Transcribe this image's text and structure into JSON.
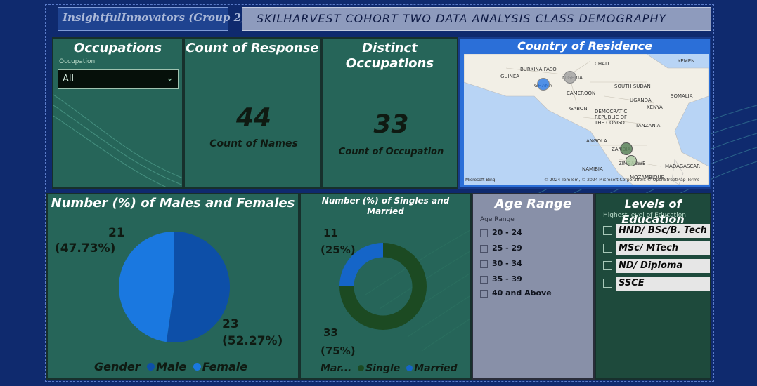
{
  "header": {
    "group_name": "InsightfulInnovators (Group 2)",
    "report_title": "SKILHARVEST COHORT TWO DATA ANALYSIS CLASS DEMOGRAPHY"
  },
  "occupations": {
    "title": "Occupations",
    "filter_label": "Occupation",
    "filter_value": "All"
  },
  "count_of_response": {
    "title": "Count of Response",
    "value": "44",
    "caption": "Count of Names"
  },
  "distinct_occupations": {
    "title_line1": "Distinct",
    "title_line2": "Occupations",
    "value": "33",
    "caption": "Count of Occupation"
  },
  "country_map": {
    "title": "Country of Residence",
    "labels": [
      "BURKINA FASO",
      "CHAD",
      "YEMEN",
      "GUINEA",
      "NIGERIA",
      "GHANA",
      "CAMEROON",
      "SOUTH SUDAN",
      "SOMALIA",
      "UGANDA",
      "KENYA",
      "GABON",
      "DEMOCRATIC",
      "REPUBLIC OF",
      "THE CONGO",
      "TANZANIA",
      "ANGOLA",
      "ZAMBIA",
      "ZIMBABWE",
      "NAMIBIA",
      "MADAGASCAR",
      "MOZAMBIQUE"
    ],
    "attribution_left": "Microsoft Bing",
    "attribution_right": "© 2024 TomTom, © 2024 Microsoft Corporation, © OpenStreetMap  Terms"
  },
  "gender": {
    "title": "Number (%) of Males and Females",
    "legend_title": "Gender",
    "legend": [
      {
        "name": "Male",
        "color": "#0d4fa8"
      },
      {
        "name": "Female",
        "color": "#1a78e0"
      }
    ],
    "female_label_count": "21",
    "female_label_pct": "(47.73%)",
    "male_label_count": "23",
    "male_label_pct": "(52.27%)"
  },
  "marital": {
    "title": "Number (%) of Singles and Married",
    "legend_title": "Mar...",
    "legend": [
      {
        "name": "Single",
        "color": "#1c4a22"
      },
      {
        "name": "Married",
        "color": "#1565c8"
      }
    ],
    "married_label_count": "11",
    "married_label_pct": "(25%)",
    "single_label_count": "33",
    "single_label_pct": "(75%)"
  },
  "age_range": {
    "title": "Age Range",
    "filter_label": "Age Range",
    "items": [
      "20 - 24",
      "25 - 29",
      "30 - 34",
      "35 - 39",
      "40 and Above"
    ]
  },
  "education": {
    "title": "Levels of Education",
    "filter_label": "Highest level of Education",
    "items": [
      "HND/ BSc/B. Tech",
      "MSc/ MTech",
      "ND/ Diploma",
      "SSCE"
    ]
  },
  "chart_data": [
    {
      "type": "pie",
      "title": "Number (%) of Males and Females",
      "categories": [
        "Male",
        "Female"
      ],
      "values": [
        23,
        21
      ],
      "percentages": [
        52.27,
        47.73
      ]
    },
    {
      "type": "pie",
      "title": "Number (%) of Singles and Married",
      "categories": [
        "Single",
        "Married"
      ],
      "values": [
        33,
        11
      ],
      "percentages": [
        75,
        25
      ]
    }
  ]
}
